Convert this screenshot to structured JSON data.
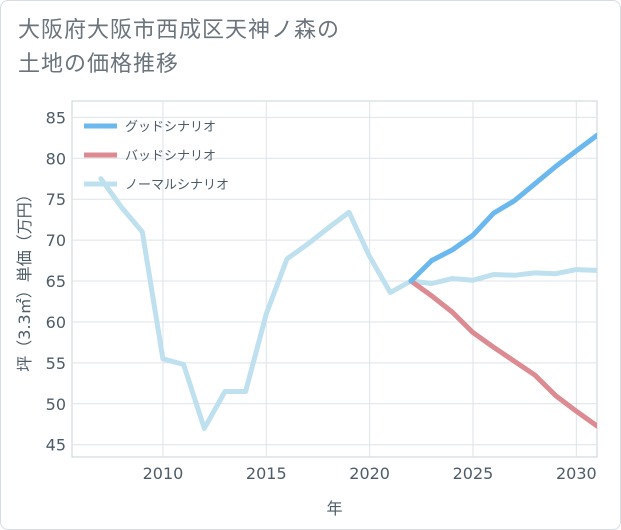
{
  "title_line1": "大阪府大阪市西成区天神ノ森の",
  "title_line2": "土地の価格推移",
  "chart_data": {
    "type": "line",
    "xlabel": "年",
    "ylabel": "坪（3.3㎡）単価（万円）",
    "xlim": [
      2005.6,
      2031
    ],
    "ylim": [
      43.5,
      87
    ],
    "x_ticks": [
      2010,
      2015,
      2020,
      2025,
      2030
    ],
    "y_ticks": [
      45,
      50,
      55,
      60,
      65,
      70,
      75,
      80,
      85
    ],
    "grid": true,
    "legend_position": "top-left",
    "series": [
      {
        "name": "グッドシナリオ",
        "color": "#6bb8ee",
        "x": [
          2022,
          2023,
          2024,
          2025,
          2026,
          2027,
          2028,
          2029,
          2030,
          2031
        ],
        "y": [
          65.0,
          67.5,
          68.8,
          70.6,
          73.3,
          74.8,
          76.9,
          79.0,
          80.9,
          82.8
        ]
      },
      {
        "name": "バッドシナリオ",
        "color": "#dd8b92",
        "x": [
          2022,
          2023,
          2024,
          2025,
          2026,
          2027,
          2028,
          2029,
          2030,
          2031
        ],
        "y": [
          65.0,
          63.2,
          61.2,
          58.7,
          56.9,
          55.2,
          53.5,
          51.0,
          49.1,
          47.3
        ]
      },
      {
        "name": "ノーマルシナリオ",
        "color": "#bfe0ee",
        "x": [
          2007,
          2008,
          2009,
          2010,
          2011,
          2012,
          2013,
          2014,
          2015,
          2016,
          2017,
          2018,
          2019,
          2020,
          2021,
          2022,
          2023,
          2024,
          2025,
          2026,
          2027,
          2028,
          2029,
          2030,
          2031
        ],
        "y": [
          77.5,
          74.0,
          71.0,
          55.5,
          54.8,
          47.0,
          51.5,
          51.5,
          61.0,
          67.7,
          69.5,
          71.5,
          73.4,
          68.0,
          63.6,
          65.0,
          64.7,
          65.3,
          65.1,
          65.8,
          65.7,
          66.0,
          65.9,
          66.4,
          66.3
        ]
      }
    ]
  }
}
